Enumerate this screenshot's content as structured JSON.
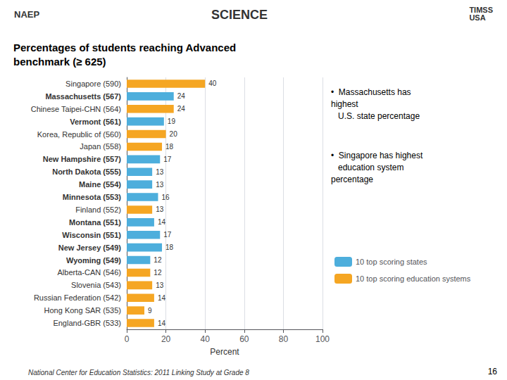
{
  "chart_data": {
    "type": "bar",
    "orientation": "horizontal",
    "title": "Percentages of students reaching Advanced\nbenchmark (≥ 625)",
    "categories": [
      "Singapore (590)",
      "Massachusetts (567)",
      "Chinese Taipei-CHN (564)",
      "Vermont (561)",
      "Korea, Republic of (560)",
      "Japan (558)",
      "New Hampshire (557)",
      "North Dakota (555)",
      "Maine (554)",
      "Minnesota (553)",
      "Finland (552)",
      "Montana (551)",
      "Wisconsin (551)",
      "New Jersey (549)",
      "Wyoming (549)",
      "Alberta-CAN (546)",
      "Slovenia (543)",
      "Russian Federation (542)",
      "Hong Kong SAR (535)",
      "England-GBR (533)"
    ],
    "series": [
      {
        "name": "10 top scoring states",
        "color": "#4DAEDC",
        "values": [
          null,
          24,
          null,
          19,
          null,
          null,
          17,
          13,
          13,
          16,
          null,
          14,
          17,
          18,
          12,
          null,
          null,
          null,
          null,
          null
        ]
      },
      {
        "name": "10 top scoring education systems",
        "color": "#F5A623",
        "values": [
          40,
          null,
          24,
          null,
          20,
          18,
          null,
          null,
          null,
          null,
          13,
          null,
          null,
          null,
          null,
          12,
          13,
          14,
          9,
          14
        ]
      }
    ],
    "xlim": [
      0,
      100
    ],
    "xticks": [
      0,
      20,
      40,
      60,
      80,
      100
    ],
    "xlabel": "Percent",
    "grid": true,
    "legend": "right",
    "data_labels": true,
    "annotations": [
      "NAEP",
      "SCIENCE",
      "TIMSS\nUSA",
      "•  Massachusetts has\nhighest\n   U.S. state percentage",
      "•  Singapore has highest\n   education system\npercentage",
      "National Center for Education Statistics: 2011 Linking Study at Grade 8",
      "16"
    ]
  }
}
